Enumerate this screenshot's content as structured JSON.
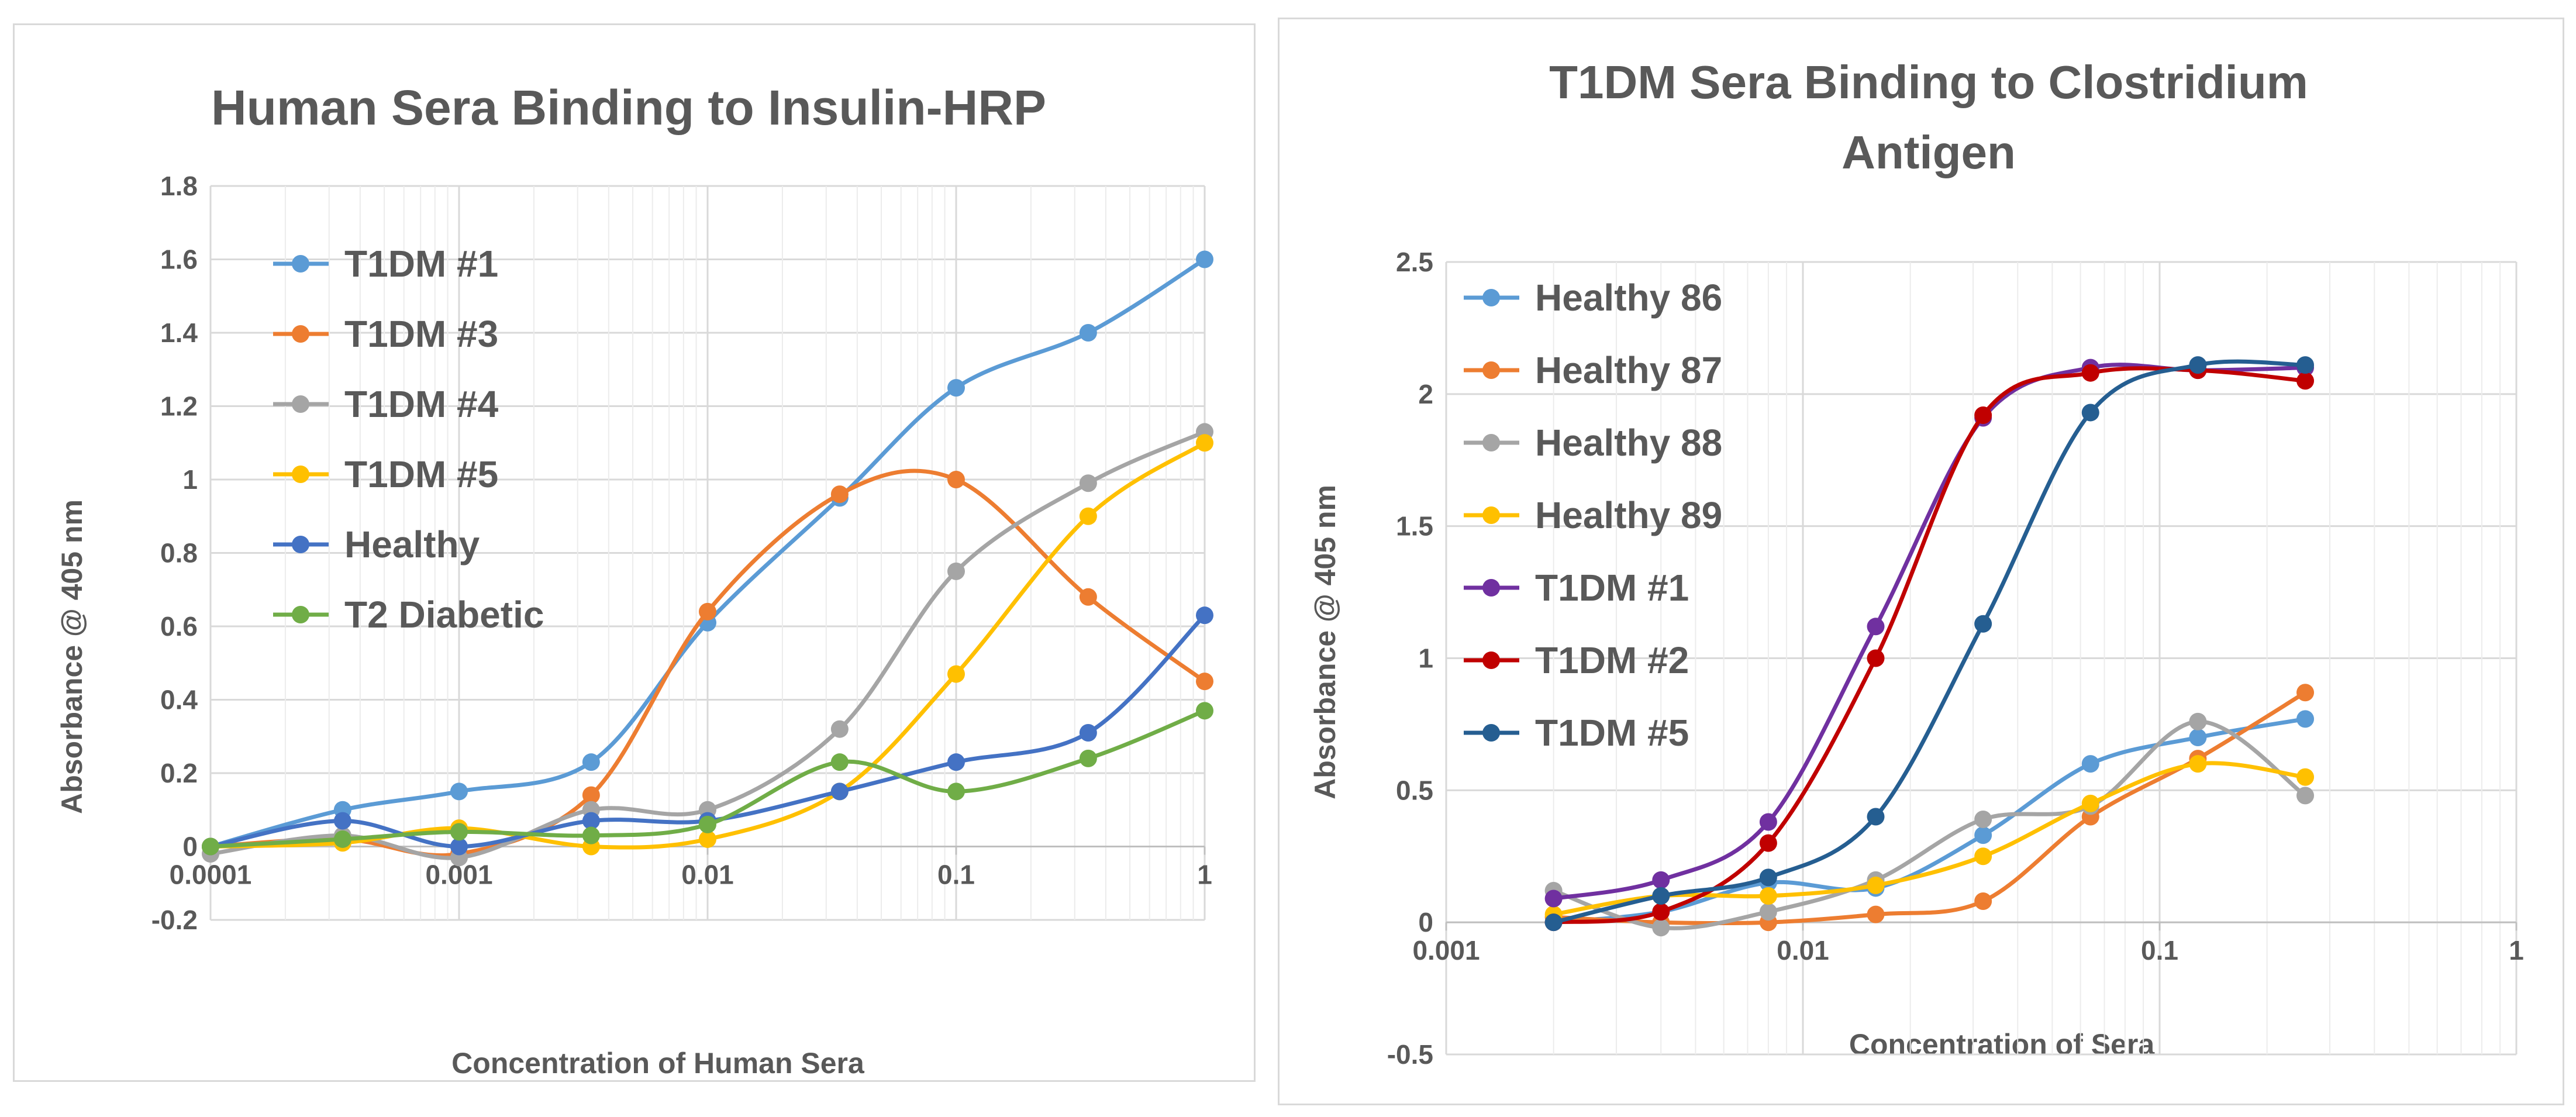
{
  "chart_data": [
    {
      "type": "line",
      "title": "Human Sera Binding to Insulin-HRP",
      "xlabel": "Concentration of Human Sera",
      "ylabel": "Absorbance  @ 405 nm",
      "xscale": "log",
      "xlim": [
        0.0001,
        1
      ],
      "ylim": [
        -0.2,
        1.8
      ],
      "yticks": [
        -0.2,
        0,
        0.2,
        0.4,
        0.6,
        0.8,
        1,
        1.2,
        1.4,
        1.6,
        1.8
      ],
      "ytick_labels": [
        "-0.2",
        "0",
        "0.2",
        "0.4",
        "0.6",
        "0.8",
        "1",
        "1.2",
        "1.4",
        "1.6",
        "1.8"
      ],
      "xticks": [
        0.0001,
        0.001,
        0.01,
        0.1,
        1
      ],
      "xtick_labels": [
        "0.0001",
        "0.001",
        "0.01",
        "0.1",
        "1"
      ],
      "legend_position": "top-left",
      "x": [
        0.0001,
        0.00034,
        0.001,
        0.0034,
        0.01,
        0.034,
        0.1,
        0.34,
        1
      ],
      "series": [
        {
          "name": "T1DM #1",
          "color": "#5b9bd5",
          "values": [
            0.0,
            0.1,
            0.15,
            0.23,
            0.61,
            0.95,
            1.25,
            1.4,
            1.6
          ]
        },
        {
          "name": "T1DM #3",
          "color": "#ed7d31",
          "values": [
            0.0,
            0.02,
            -0.02,
            0.14,
            0.64,
            0.96,
            1.0,
            0.68,
            0.45
          ]
        },
        {
          "name": "T1DM #4",
          "color": "#a5a5a5",
          "values": [
            -0.02,
            0.03,
            -0.03,
            0.1,
            0.1,
            0.32,
            0.75,
            0.99,
            1.13
          ]
        },
        {
          "name": "T1DM #5",
          "color": "#ffc000",
          "values": [
            0.0,
            0.01,
            0.05,
            0.0,
            0.02,
            0.15,
            0.47,
            0.9,
            1.1
          ]
        },
        {
          "name": "Healthy",
          "color": "#4472c4",
          "values": [
            0.0,
            0.07,
            0.0,
            0.07,
            0.07,
            0.15,
            0.23,
            0.31,
            0.63
          ]
        },
        {
          "name": "T2 Diabetic",
          "color": "#70ad47",
          "values": [
            0.0,
            0.02,
            0.04,
            0.03,
            0.06,
            0.23,
            0.15,
            0.24,
            0.37
          ]
        }
      ]
    },
    {
      "type": "line",
      "title": "T1DM Sera Binding to Clostridium Antigen",
      "title_lines": [
        "T1DM Sera Binding to Clostridium",
        "Antigen"
      ],
      "xlabel": "Concentration of Sera",
      "ylabel": "Absorbance  @ 405 nm",
      "xscale": "log",
      "xlim": [
        0.001,
        1
      ],
      "ylim": [
        -0.5,
        2.5
      ],
      "yticks": [
        -0.5,
        0,
        0.5,
        1,
        1.5,
        2,
        2.5
      ],
      "ytick_labels": [
        "-0.5",
        "0",
        "0.5",
        "1",
        "1.5",
        "2",
        "2.5"
      ],
      "xticks": [
        0.001,
        0.01,
        0.1,
        1
      ],
      "xtick_labels": [
        "0.001",
        "0.01",
        "0.1",
        "1"
      ],
      "legend_position": "top-left",
      "x": [
        0.002,
        0.004,
        0.008,
        0.016,
        0.032,
        0.064,
        0.128,
        0.256
      ],
      "series": [
        {
          "name": "Healthy 86",
          "color": "#5b9bd5",
          "values": [
            0.0,
            0.04,
            0.15,
            0.13,
            0.33,
            0.6,
            0.7,
            0.77
          ]
        },
        {
          "name": "Healthy 87",
          "color": "#ed7d31",
          "values": [
            0.02,
            0.0,
            0.0,
            0.03,
            0.08,
            0.4,
            0.62,
            0.87
          ]
        },
        {
          "name": "Healthy 88",
          "color": "#a5a5a5",
          "values": [
            0.12,
            -0.02,
            0.04,
            0.16,
            0.39,
            0.44,
            0.76,
            0.48
          ]
        },
        {
          "name": "Healthy 89",
          "color": "#ffc000",
          "values": [
            0.03,
            0.1,
            0.1,
            0.14,
            0.25,
            0.45,
            0.6,
            0.55
          ]
        },
        {
          "name": "T1DM #1",
          "color": "#7030a0",
          "values": [
            0.09,
            0.16,
            0.38,
            1.12,
            1.91,
            2.1,
            2.09,
            2.1
          ]
        },
        {
          "name": "T1DM #2",
          "color": "#c00000",
          "values": [
            0.0,
            0.04,
            0.3,
            1.0,
            1.92,
            2.08,
            2.09,
            2.05
          ]
        },
        {
          "name": "T1DM #5",
          "color": "#255e91",
          "values": [
            0.0,
            0.1,
            0.17,
            0.4,
            1.13,
            1.93,
            2.11,
            2.11
          ]
        }
      ]
    }
  ]
}
